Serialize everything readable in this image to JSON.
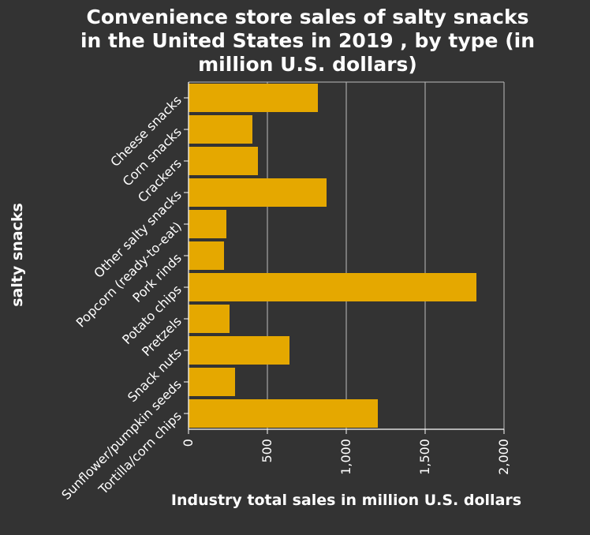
{
  "chart_data": {
    "type": "bar",
    "orientation": "horizontal",
    "title_lines": [
      "Convenience store sales of salty snacks",
      "in the United States in 2019 , by type (in",
      "million U.S. dollars)"
    ],
    "xlabel": "Industry total sales in million U.S. dollars",
    "ylabel": "salty snacks",
    "xlim": [
      0,
      2000
    ],
    "xticks": [
      0,
      500,
      1000,
      1500,
      2000
    ],
    "xtick_labels": [
      "0",
      "500",
      "1,000",
      "1,500",
      "2,000"
    ],
    "grid": true,
    "categories": [
      "Cheese snacks",
      "Corn snacks",
      "Crackers",
      "Other salty snacks",
      "Popcorn (ready-to-eat)",
      "Pork rinds",
      "Potato chips",
      "Pretzels",
      "Snack nuts",
      "Sunflower/pumpkin seeds",
      "Tortilla/corn chips"
    ],
    "values": [
      820,
      405,
      440,
      875,
      240,
      225,
      1825,
      260,
      640,
      295,
      1200
    ],
    "bar_color": "#e5a800",
    "background_color": "#333333"
  }
}
